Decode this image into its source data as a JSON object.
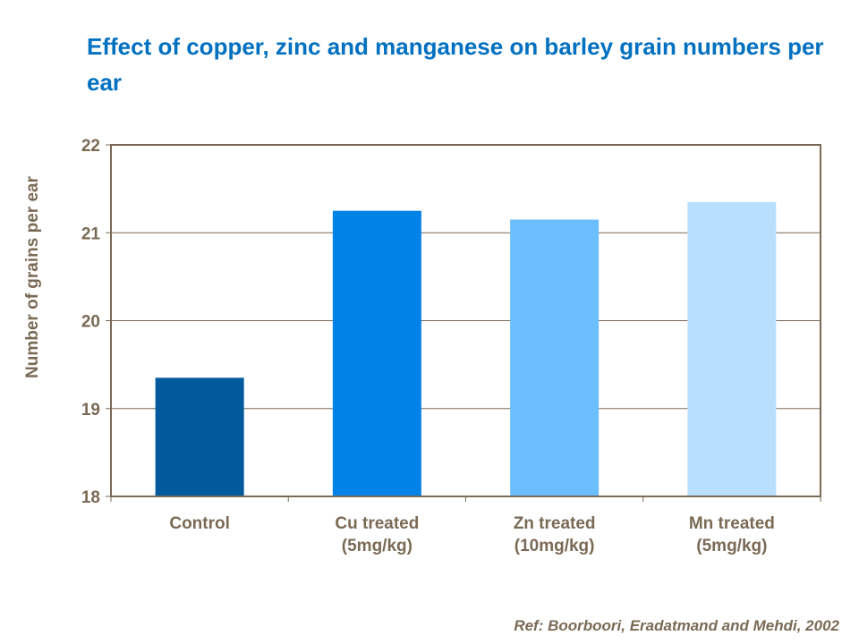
{
  "chart_data": {
    "type": "bar",
    "title": "Effect of copper, zinc and manganese on barley grain numbers per ear",
    "xlabel": "",
    "ylabel": "Number of grains per ear",
    "ylim": [
      18,
      22
    ],
    "yticks": [
      "18",
      "19",
      "20",
      "21",
      "22"
    ],
    "grid": true,
    "categories": [
      [
        "Control"
      ],
      [
        "Cu treated",
        "(5mg/kg)"
      ],
      [
        "Zn treated",
        "(10mg/kg)"
      ],
      [
        "Mn treated",
        "(5mg/kg)"
      ]
    ],
    "values": [
      19.35,
      21.25,
      21.15,
      21.35
    ],
    "colors": [
      "#005A9C",
      "#0082E6",
      "#6BBEFF",
      "#B9DFFF"
    ]
  },
  "reference": "Ref: Boorboori,  Eradatmand and Mehdi, 2002"
}
